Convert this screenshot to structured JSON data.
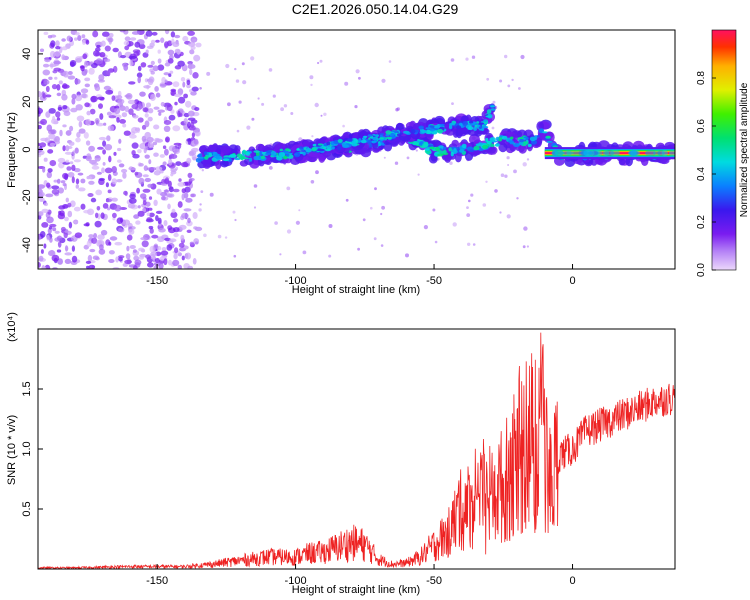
{
  "figure_title": "C2E1.2026.050.14.04.G29",
  "chart_data": [
    {
      "type": "heatmap",
      "description": "Radio-occultation spectrogram of frequency vs. height of straight line",
      "xlabel": "Height of straight line (km)",
      "ylabel": "Frequency (Hz)",
      "xlim": [
        -193,
        37
      ],
      "ylim": [
        -50,
        50
      ],
      "xticks": [
        -150,
        -100,
        -50,
        0
      ],
      "yticks": [
        -40,
        -20,
        0,
        20,
        40
      ],
      "colorbar": {
        "label": "Normalized spectral amplitude",
        "range": [
          0,
          1
        ],
        "ticks": [
          "0.0",
          "0.2",
          "0.4",
          "0.6",
          "0.8"
        ],
        "colormap": "rainbow (violet to red)"
      },
      "features": [
        {
          "name": "noise region",
          "x_range": [
            -193,
            -135
          ],
          "y_range": [
            -50,
            50
          ],
          "amplitude": 0.05
        },
        {
          "name": "main trace",
          "points": [
            [
              -135,
              -3
            ],
            [
              -110,
              -2.5
            ],
            [
              -90,
              0
            ],
            [
              -75,
              2
            ],
            [
              -60,
              6
            ],
            [
              -50,
              -1
            ],
            [
              -40,
              0
            ],
            [
              -25,
              4
            ],
            [
              -15,
              3
            ],
            [
              -10,
              8
            ],
            [
              -5,
              -2
            ],
            [
              37,
              -1.5
            ]
          ],
          "amplitude": 0.3
        },
        {
          "name": "secondary trace",
          "points": [
            [
              -100,
              -1
            ],
            [
              -80,
              3
            ],
            [
              -70,
              5
            ],
            [
              -55,
              8
            ],
            [
              -40,
              10
            ],
            [
              -32,
              10
            ],
            [
              -28,
              20
            ]
          ],
          "amplitude": 0.25
        },
        {
          "name": "steady line",
          "x_range": [
            -10,
            37
          ],
          "y": -1.5,
          "amplitude": 1.0
        }
      ]
    },
    {
      "type": "line",
      "xlabel": "Height of straight line (km)",
      "ylabel": "SNR (10 * v/v)",
      "yscale_label": "(x10⁴)",
      "xlim": [
        -193,
        37
      ],
      "ylim": [
        0,
        2.0
      ],
      "xticks": [
        -150,
        -100,
        -50,
        0
      ],
      "yticks": [
        "0.5",
        "1.0",
        "1.5"
      ],
      "color": "#ee2222",
      "series": [
        {
          "x": [
            -193,
            -180,
            -160,
            -140,
            -130,
            -120,
            -110,
            -100,
            -95,
            -90,
            -85,
            -80,
            -75,
            -70,
            -65,
            -60,
            -55,
            -50,
            -45,
            -40,
            -35,
            -30,
            -25,
            -20,
            -17,
            -15,
            -13,
            -12,
            -11,
            -10,
            -8,
            -5,
            0,
            5,
            10,
            15,
            20,
            25,
            30,
            37
          ],
          "y": [
            0.01,
            0.01,
            0.02,
            0.02,
            0.04,
            0.07,
            0.1,
            0.1,
            0.13,
            0.14,
            0.18,
            0.22,
            0.2,
            0.08,
            0.04,
            0.05,
            0.1,
            0.2,
            0.3,
            0.5,
            0.55,
            0.6,
            0.7,
            0.9,
            1.0,
            1.1,
            0.9,
            1.3,
            1.9,
            0.9,
            0.7,
            0.95,
            1.0,
            1.15,
            1.2,
            1.25,
            1.3,
            1.35,
            1.4,
            1.43
          ]
        }
      ]
    }
  ]
}
